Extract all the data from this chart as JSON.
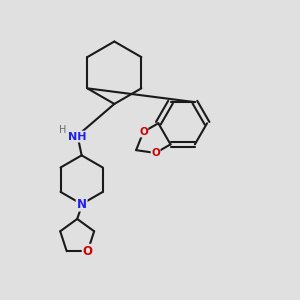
{
  "bg_color": "#e0e0e0",
  "bond_color": "#1a1a1a",
  "N_color": "#2020ee",
  "O_color": "#cc0000",
  "H_color": "#607070",
  "lw": 1.5,
  "fig_w": 3.0,
  "fig_h": 3.0,
  "dpi": 100,
  "xlim": [
    0,
    10
  ],
  "ylim": [
    0,
    10
  ]
}
